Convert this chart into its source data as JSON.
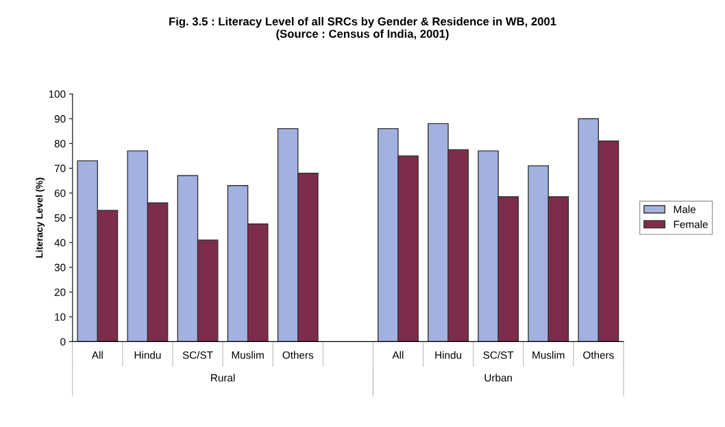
{
  "chart_data": {
    "type": "bar",
    "title": "Fig. 3.5 : Literacy Level of all SRCs by Gender & Residence in WB, 2001\n(Source : Census of India, 2001)",
    "ylabel": "Literacy Level (%)",
    "categories": [
      "All",
      "Hindu",
      "SC/ST",
      "Muslim",
      "Others",
      null,
      "All",
      "Hindu",
      "SC/ST",
      "Muslim",
      "Others"
    ],
    "series": [
      {
        "name": "Male",
        "color": "#a3b1e0",
        "values": [
          73,
          77,
          67,
          63,
          86,
          null,
          86,
          88,
          77,
          71,
          90
        ]
      },
      {
        "name": "Female",
        "color": "#7e2c4c",
        "values": [
          53,
          56,
          41,
          47.5,
          68,
          null,
          75,
          77.5,
          58.5,
          58.5,
          81
        ]
      }
    ],
    "annotations": [
      "Rural",
      "Urban"
    ],
    "ylim": [
      0,
      100
    ],
    "yticks": [
      0,
      10,
      20,
      30,
      40,
      50,
      60,
      70,
      80,
      90,
      100
    ],
    "grid": false,
    "legend": "right"
  }
}
